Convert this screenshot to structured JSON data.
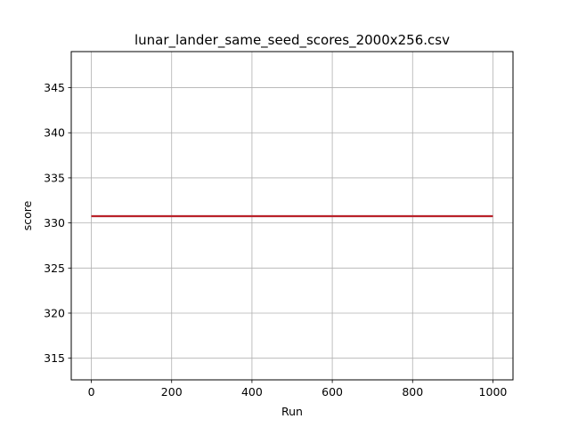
{
  "chart_data": {
    "type": "line",
    "title": "lunar_lander_same_seed_scores_2000x256.csv",
    "xlabel": "Run",
    "ylabel": "score",
    "xlim": [
      -50,
      1050
    ],
    "ylim": [
      312.6,
      349.0
    ],
    "xticks": [
      0,
      200,
      400,
      600,
      800,
      1000
    ],
    "yticks": [
      315,
      320,
      325,
      330,
      335,
      340,
      345
    ],
    "grid": true,
    "series": [
      {
        "color": "#8b1a2b",
        "x": [
          0,
          1000
        ],
        "y": [
          330.75,
          330.75
        ]
      },
      {
        "color": "#d62728",
        "x": [
          0,
          1000
        ],
        "y": [
          330.75,
          330.75
        ]
      }
    ]
  }
}
